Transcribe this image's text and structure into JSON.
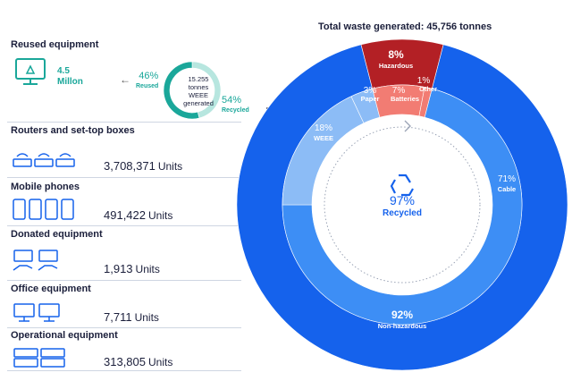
{
  "left_panel": {
    "reused": {
      "title": "Reused equipment",
      "quantity": "4.5",
      "quantity_unit": "Millon",
      "reused_pct": "46%",
      "reused_label": "Reused",
      "recycled_pct": "54%",
      "recycled_label": "Recycled",
      "ring_line1": "15.255",
      "ring_line2": "tonnes",
      "ring_line3": "WEEE",
      "ring_line4": "generated"
    },
    "sections": [
      {
        "title": "Routers and set-top boxes",
        "value": "3,708,371",
        "unit": "Units",
        "icon": "router-icon"
      },
      {
        "title": "Mobile phones",
        "value": "491,422",
        "unit": "Units",
        "icon": "mobile-phone-icon"
      },
      {
        "title": "Donated equipment",
        "value": "1,913",
        "unit": "Units",
        "icon": "donated-equipment-icon"
      },
      {
        "title": "Office equipment",
        "value": "7,711",
        "unit": "Units",
        "icon": "office-monitor-icon"
      },
      {
        "title": "Operational equipment",
        "value": "313,805",
        "unit": "Units",
        "icon": "server-rack-icon"
      }
    ]
  },
  "colors": {
    "dark_blue": "#1562ec",
    "mid_blue": "#3d8ef5",
    "light_blue": "#8cbcf6",
    "dark_red": "#b32025",
    "salmon": "#f27c73",
    "teal": "#1aa79a",
    "navy_text": "#1b1f3b"
  },
  "chart_data": {
    "type": "pie",
    "title": "Total waste generated: 45,756 tonnes",
    "outer_ring": [
      {
        "label": "Non-hazardous",
        "pct": "92%",
        "value": 92
      },
      {
        "label": "Hazardous",
        "pct": "8%",
        "value": 8
      }
    ],
    "inner_ring": [
      {
        "label": "Cable",
        "pct": "71%",
        "value": 71
      },
      {
        "label": "WEEE",
        "pct": "18%",
        "value": 18
      },
      {
        "label": "Paper",
        "pct": "3%",
        "value": 3
      },
      {
        "label": "Batteries",
        "pct": "7%",
        "value": 7
      },
      {
        "label": "Other",
        "pct": "1%",
        "value": 1
      }
    ],
    "center": {
      "pct": "97%",
      "label": "Recycled"
    },
    "reused_ring": [
      {
        "label": "Reused",
        "value": 46
      },
      {
        "label": "Recycled",
        "value": 54
      }
    ]
  }
}
